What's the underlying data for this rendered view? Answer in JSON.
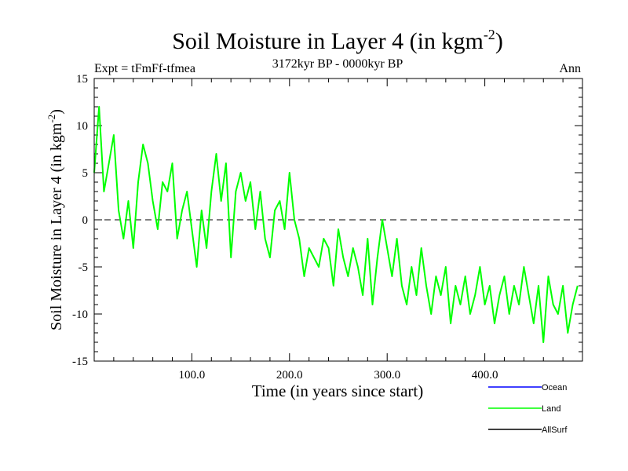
{
  "chart_data": {
    "type": "line",
    "title": "Soil Moisture in Layer 4 (in kgm",
    "title_superscript": "-2",
    "title_close": ")",
    "subtitle": "3172kyr BP - 0000kyr BP",
    "left_label": "Expt = tFmFf-tfmea",
    "right_label": "Ann",
    "xlabel": "Time (in years since start)",
    "ylabel": "Soil Moisture in Layer 4 (in kgm",
    "ylabel_superscript": "-2",
    "ylabel_close": ")",
    "xlim": [
      0,
      500
    ],
    "ylim": [
      -15,
      15
    ],
    "x_ticks": [
      {
        "value": 100,
        "label": "100.0"
      },
      {
        "value": 200,
        "label": "200.0"
      },
      {
        "value": 300,
        "label": "300.0"
      },
      {
        "value": 400,
        "label": "400.0"
      }
    ],
    "y_ticks": [
      {
        "value": 15,
        "label": "15"
      },
      {
        "value": 10,
        "label": "10"
      },
      {
        "value": 5,
        "label": "5"
      },
      {
        "value": 0,
        "label": "0"
      },
      {
        "value": -5,
        "label": "-5"
      },
      {
        "value": -10,
        "label": "-10"
      },
      {
        "value": -15,
        "label": "-15"
      }
    ],
    "zero_line": true,
    "legend": [
      {
        "name": "Ocean",
        "color": "#0000ff"
      },
      {
        "name": "Land",
        "color": "#00ff00"
      },
      {
        "name": "AllSurf",
        "color": "#000000"
      }
    ],
    "series": [
      {
        "name": "Land",
        "color": "#00ff00",
        "x": [
          0,
          5,
          10,
          15,
          20,
          25,
          30,
          35,
          40,
          45,
          50,
          55,
          60,
          65,
          70,
          75,
          80,
          85,
          90,
          95,
          100,
          105,
          110,
          115,
          120,
          125,
          130,
          135,
          140,
          145,
          150,
          155,
          160,
          165,
          170,
          175,
          180,
          185,
          190,
          195,
          200,
          205,
          210,
          215,
          220,
          225,
          230,
          235,
          240,
          245,
          250,
          255,
          260,
          265,
          270,
          275,
          280,
          285,
          290,
          295,
          300,
          305,
          310,
          315,
          320,
          325,
          330,
          335,
          340,
          345,
          350,
          355,
          360,
          365,
          370,
          375,
          380,
          385,
          390,
          395,
          400,
          405,
          410,
          415,
          420,
          425,
          430,
          435,
          440,
          445,
          450,
          455,
          460,
          465,
          470,
          475,
          480,
          485,
          490,
          495
        ],
        "values": [
          5,
          12,
          3,
          6,
          9,
          1,
          -2,
          2,
          -3,
          4,
          8,
          6,
          2,
          -1,
          4,
          3,
          6,
          -2,
          1,
          3,
          -1,
          -5,
          1,
          -3,
          3,
          7,
          2,
          6,
          -4,
          3,
          5,
          2,
          4,
          -1,
          3,
          -2,
          -4,
          1,
          2,
          -1,
          5,
          0,
          -2,
          -6,
          -3,
          -4,
          -5,
          -2,
          -3,
          -7,
          -1,
          -4,
          -6,
          -3,
          -5,
          -8,
          -2,
          -9,
          -4,
          0,
          -3,
          -6,
          -2,
          -7,
          -9,
          -5,
          -8,
          -3,
          -7,
          -10,
          -6,
          -8,
          -5,
          -11,
          -7,
          -9,
          -6,
          -10,
          -8,
          -5,
          -9,
          -7,
          -11,
          -8,
          -6,
          -10,
          -7,
          -9,
          -5,
          -8,
          -11,
          -7,
          -13,
          -6,
          -9,
          -10,
          -7,
          -12,
          -9,
          -7
        ]
      }
    ]
  }
}
